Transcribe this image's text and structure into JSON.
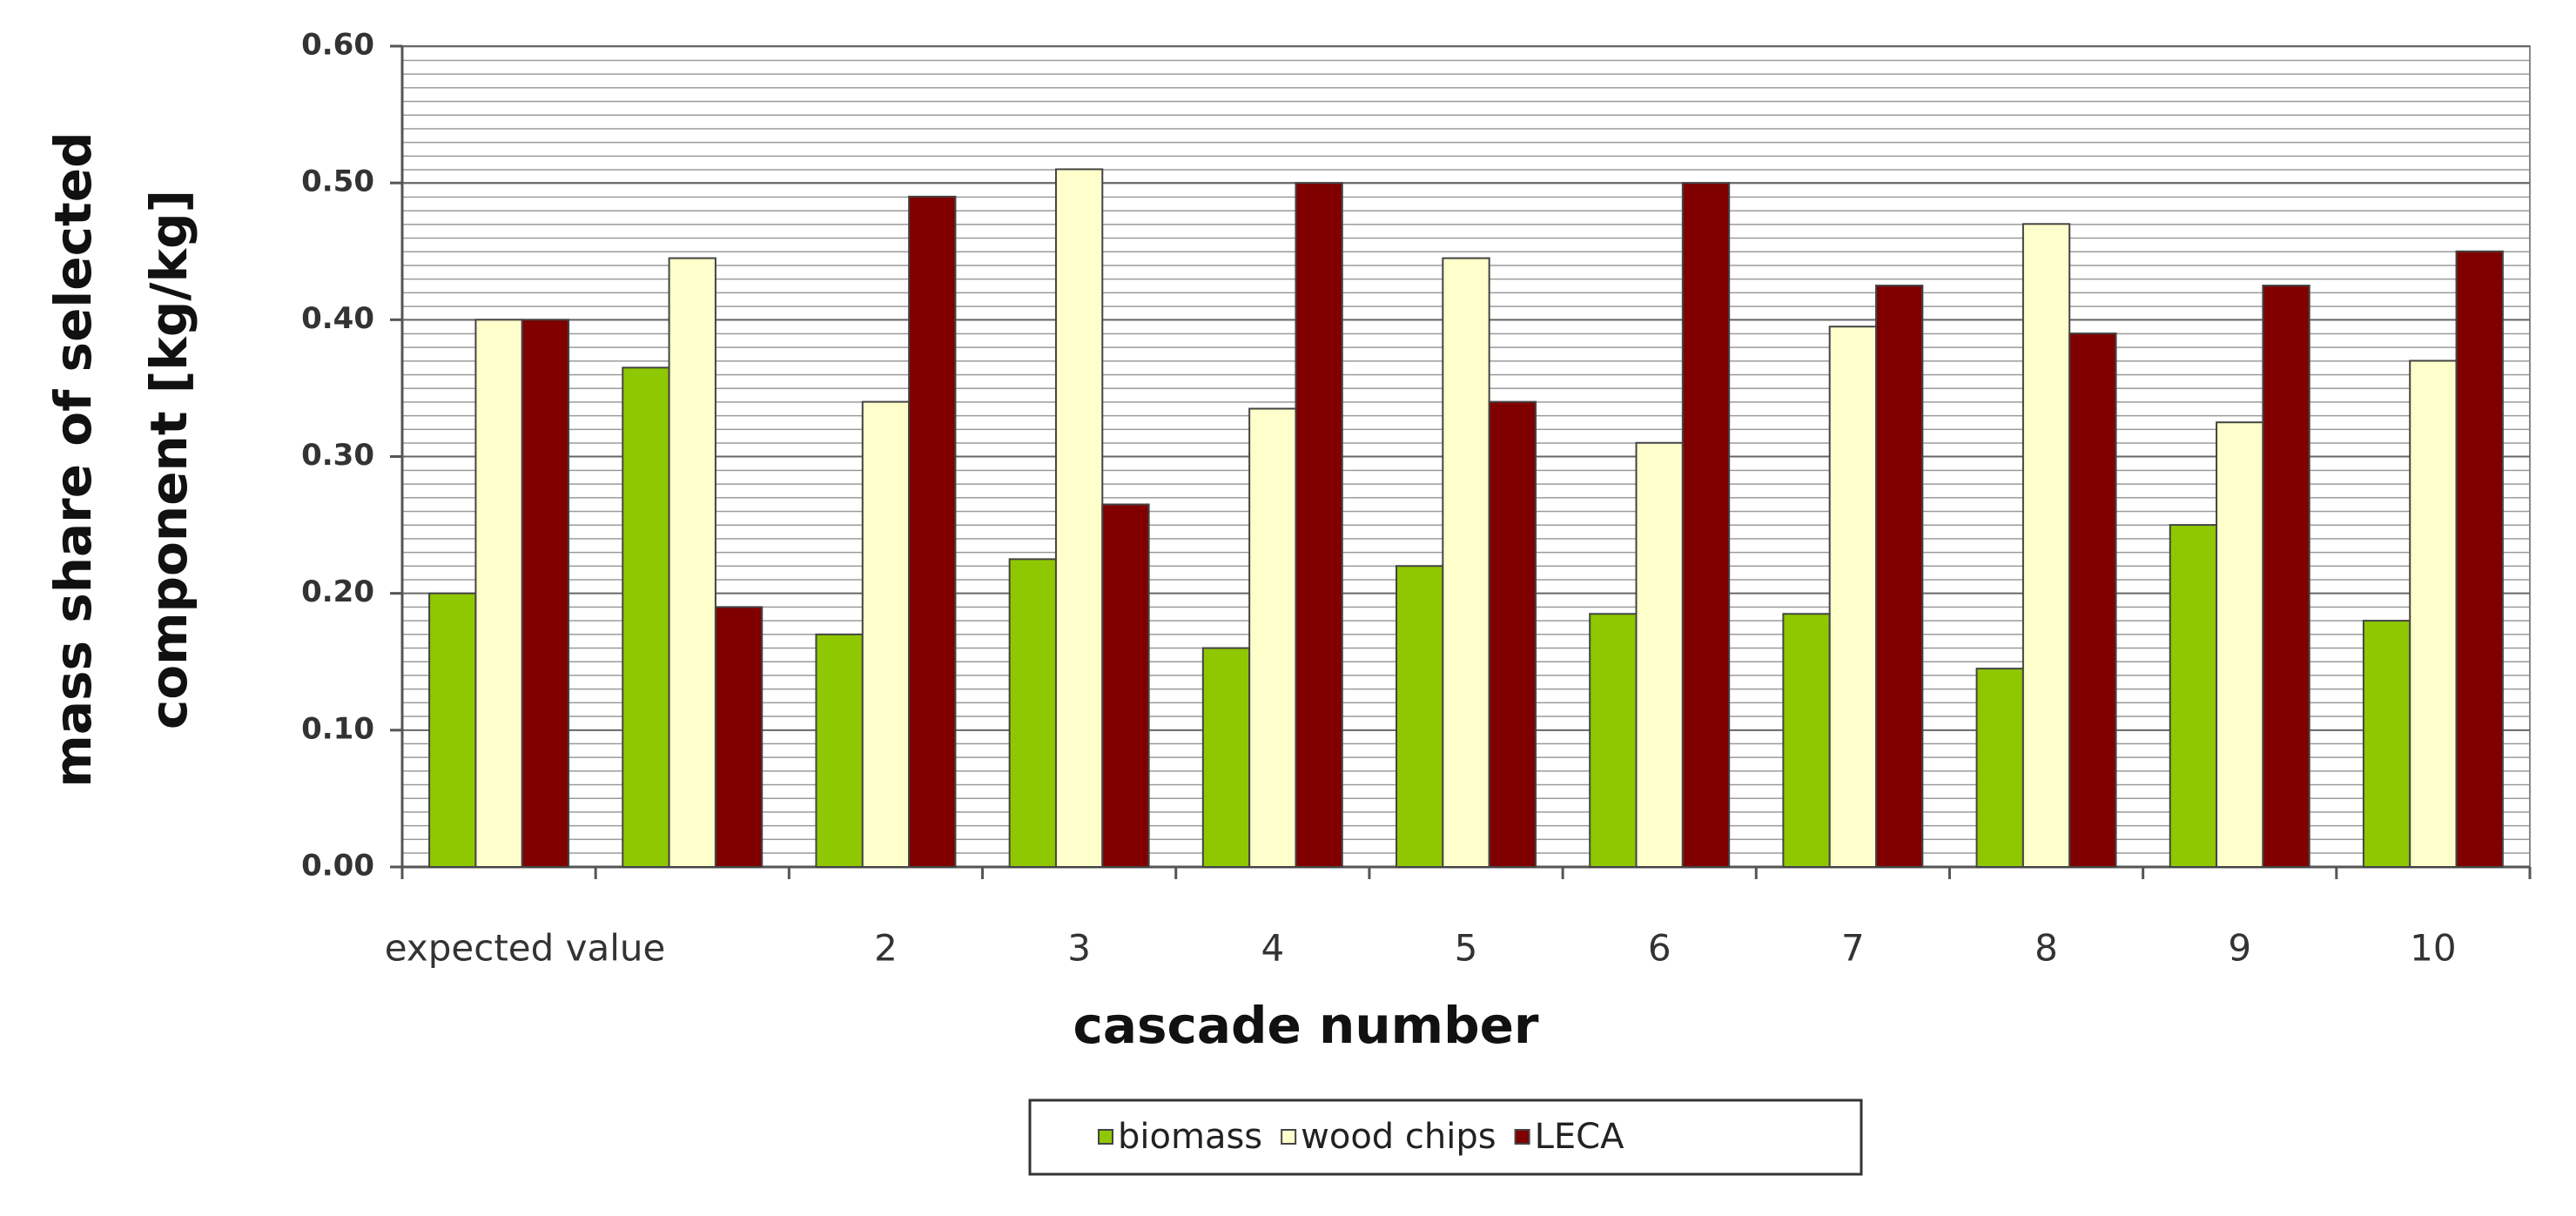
{
  "chart_data": {
    "type": "bar",
    "ylabel": [
      "mass share of selected",
      "component [kg/kg]"
    ],
    "xlabel": "cascade number",
    "categories": [
      "expected value",
      null,
      "2",
      "3",
      "4",
      "5",
      "6",
      "7",
      "8",
      "9",
      "10"
    ],
    "series": [
      {
        "name": "biomass",
        "color": "#8fc800",
        "values": [
          0.2,
          0.365,
          0.17,
          0.225,
          0.16,
          0.22,
          0.185,
          0.185,
          0.145,
          0.25,
          0.18
        ]
      },
      {
        "name": "wood chips",
        "color": "#ffffcc",
        "values": [
          0.4,
          0.445,
          0.34,
          0.51,
          0.335,
          0.445,
          0.31,
          0.395,
          0.47,
          0.325,
          0.37
        ]
      },
      {
        "name": "LECA",
        "color": "#800000",
        "values": [
          0.4,
          0.19,
          0.49,
          0.265,
          0.5,
          0.34,
          0.5,
          0.425,
          0.39,
          0.425,
          0.45
        ]
      }
    ],
    "ylim": [
      0,
      0.6
    ],
    "yticks": [
      {
        "value": 0,
        "label": "0.00"
      },
      {
        "value": 0.1,
        "label": "0.10"
      },
      {
        "value": 0.2,
        "label": "0.20"
      },
      {
        "value": 0.3,
        "label": "0.30"
      },
      {
        "value": 0.4,
        "label": "0.40"
      },
      {
        "value": 0.5,
        "label": "0.50"
      },
      {
        "value": 0.6,
        "label": "0.60"
      }
    ],
    "grid": true
  }
}
